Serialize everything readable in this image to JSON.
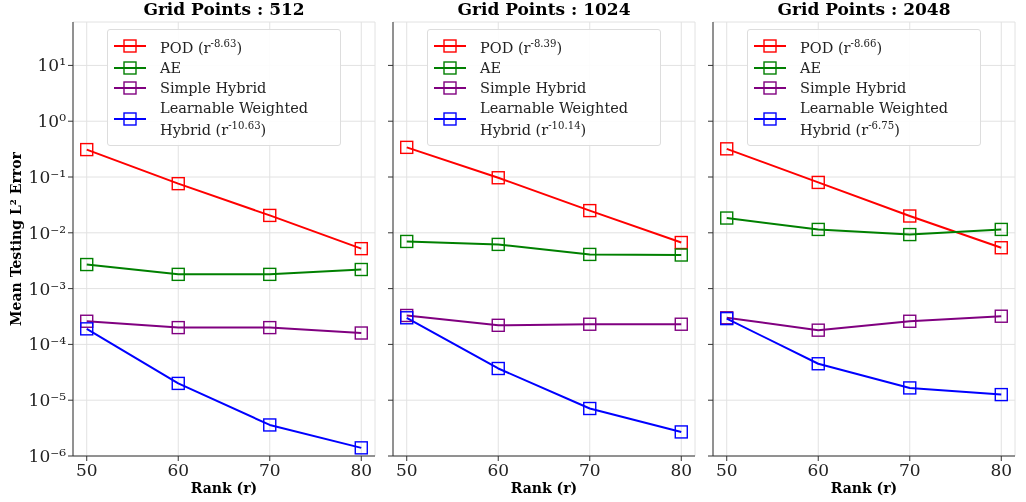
{
  "chart_data": [
    {
      "type": "line",
      "title": "Grid Points : 512",
      "xlabel": "Rank (r)",
      "ylabel": "Mean Testing L² Error",
      "x": [
        50,
        60,
        70,
        80
      ],
      "xlim": [
        48.5,
        81.5
      ],
      "xticks": [
        50,
        60,
        70,
        80
      ],
      "ylim": [
        1e-06,
        60
      ],
      "yticks": [
        {
          "value": 1e-06,
          "label": "10⁻⁶"
        },
        {
          "value": 1e-05,
          "label": "10⁻⁵"
        },
        {
          "value": 0.0001,
          "label": "10⁻⁴"
        },
        {
          "value": 0.001,
          "label": "10⁻³"
        },
        {
          "value": 0.01,
          "label": "10⁻²"
        },
        {
          "value": 0.1,
          "label": "10⁻¹"
        },
        {
          "value": 1,
          "label": "10⁰"
        },
        {
          "value": 10,
          "label": "10¹"
        }
      ],
      "log": true,
      "grid": true,
      "legend": "top",
      "marker": "square",
      "line_style": "solid",
      "series": [
        {
          "name": "POD (r$^{-8.63}$)",
          "color": "#ff0000",
          "values": [
            0.31,
            0.076,
            0.0205,
            0.0052
          ]
        },
        {
          "name": "AE",
          "color": "#008000",
          "values": [
            0.0027,
            0.0018,
            0.0018,
            0.0022
          ]
        },
        {
          "name": "Simple Hybrid",
          "color": "#800080",
          "values": [
            0.00026,
            0.0002,
            0.0002,
            0.00016
          ]
        },
        {
          "name": "Learnable Weighted Hybrid (r$^{-10.63}$)",
          "color": "#0000ff",
          "values": [
            0.00019,
            2e-05,
            3.6e-06,
            1.4e-06
          ]
        }
      ]
    },
    {
      "type": "line",
      "title": "Grid Points : 1024",
      "xlabel": "Rank (r)",
      "x": [
        50,
        60,
        70,
        80
      ],
      "xlim": [
        48.5,
        81.5
      ],
      "xticks": [
        50,
        60,
        70,
        80
      ],
      "ylim": [
        1e-06,
        60
      ],
      "yticks": [
        {
          "value": 1e-06,
          "label": null
        },
        {
          "value": 1e-05,
          "label": null
        },
        {
          "value": 0.0001,
          "label": null
        },
        {
          "value": 0.001,
          "label": null
        },
        {
          "value": 0.01,
          "label": null
        },
        {
          "value": 0.1,
          "label": null
        },
        {
          "value": 1,
          "label": null
        },
        {
          "value": 10,
          "label": null
        }
      ],
      "tick_labels": "x",
      "log": true,
      "grid": true,
      "legend": "top",
      "marker": "square",
      "line_style": "solid",
      "series": [
        {
          "name": "POD (r$^{-8.39}$)",
          "color": "#ff0000",
          "values": [
            0.34,
            0.097,
            0.025,
            0.0067
          ]
        },
        {
          "name": "AE",
          "color": "#008000",
          "values": [
            0.007,
            0.0062,
            0.0041,
            0.004
          ]
        },
        {
          "name": "Simple Hybrid",
          "color": "#800080",
          "values": [
            0.00033,
            0.00022,
            0.00023,
            0.00023
          ]
        },
        {
          "name": "Learnable Weighted Hybrid (r$^{-10.14}$)",
          "color": "#0000ff",
          "values": [
            0.0003,
            3.7e-05,
            7.1e-06,
            2.7e-06
          ]
        }
      ]
    },
    {
      "type": "line",
      "title": "Grid Points : 2048",
      "xlabel": "Rank (r)",
      "x": [
        50,
        60,
        70,
        80
      ],
      "xlim": [
        48.5,
        81.5
      ],
      "xticks": [
        50,
        60,
        70,
        80
      ],
      "ylim": [
        1e-06,
        60
      ],
      "yticks": [
        {
          "value": 1e-06,
          "label": null
        },
        {
          "value": 1e-05,
          "label": null
        },
        {
          "value": 0.0001,
          "label": null
        },
        {
          "value": 0.001,
          "label": null
        },
        {
          "value": 0.01,
          "label": null
        },
        {
          "value": 0.1,
          "label": null
        },
        {
          "value": 1,
          "label": null
        },
        {
          "value": 10,
          "label": null
        }
      ],
      "tick_labels": "x",
      "log": true,
      "grid": true,
      "legend": "top",
      "marker": "square",
      "line_style": "solid",
      "series": [
        {
          "name": "POD (r$^{-8.66}$)",
          "color": "#ff0000",
          "values": [
            0.32,
            0.08,
            0.02,
            0.0054
          ]
        },
        {
          "name": "AE",
          "color": "#008000",
          "values": [
            0.0184,
            0.0115,
            0.0093,
            0.0115
          ]
        },
        {
          "name": "Simple Hybrid",
          "color": "#800080",
          "values": [
            0.0003,
            0.00018,
            0.00026,
            0.00032
          ]
        },
        {
          "name": "Learnable Weighted Hybrid (r$^{-6.75}$)",
          "color": "#0000ff",
          "values": [
            0.00029,
            4.5e-05,
            1.66e-05,
            1.26e-05
          ]
        }
      ]
    }
  ]
}
